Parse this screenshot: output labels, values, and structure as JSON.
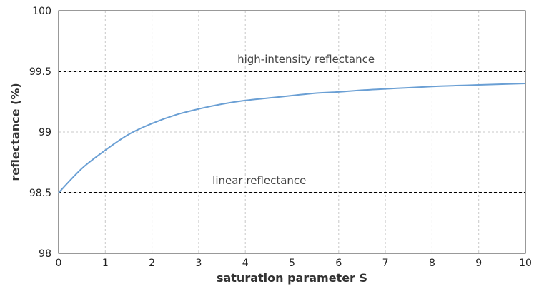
{
  "chart_data": {
    "type": "line",
    "title": "",
    "xlabel": "saturation parameter S",
    "ylabel": "reflectance (%)",
    "xlim": [
      0,
      10
    ],
    "ylim": [
      98,
      100
    ],
    "xticks": [
      0,
      1,
      2,
      3,
      4,
      5,
      6,
      7,
      8,
      9,
      10
    ],
    "yticks": [
      98,
      98.5,
      99,
      99.5,
      100
    ],
    "ytick_labels": [
      "98",
      "98.5",
      "99",
      "99.5",
      "100"
    ],
    "grid": true,
    "curve_color": "#6a9fd4",
    "series": [
      {
        "x": [
          0,
          0.5,
          1,
          1.5,
          2,
          2.5,
          3,
          3.5,
          4,
          4.5,
          5,
          5.5,
          6,
          6.5,
          7,
          7.5,
          8,
          8.5,
          9,
          9.5,
          10
        ],
        "values": [
          98.5,
          98.7,
          98.85,
          98.98,
          99.07,
          99.14,
          99.19,
          99.23,
          99.26,
          99.28,
          99.3,
          99.32,
          99.33,
          99.345,
          99.355,
          99.365,
          99.375,
          99.382,
          99.388,
          99.394,
          99.4
        ]
      }
    ],
    "reference_lines": [
      {
        "y": 99.5,
        "label": "high-intensity reflectance",
        "label_x": 5.3,
        "label_y": 99.6,
        "style": "dashed",
        "color": "#000000"
      },
      {
        "y": 98.5,
        "label": "linear reflectance",
        "label_x": 4.3,
        "label_y": 98.6,
        "style": "dashed",
        "color": "#000000"
      }
    ]
  }
}
